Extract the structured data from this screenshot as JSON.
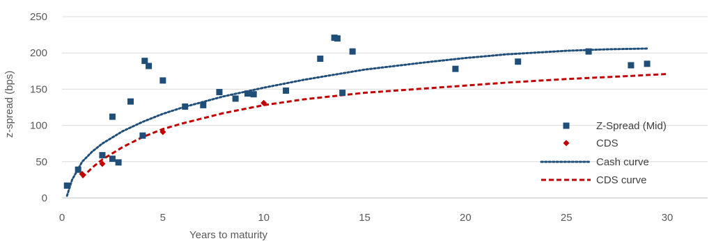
{
  "chart_data": {
    "type": "scatter",
    "title": "",
    "xlabel": "Years to maturity",
    "ylabel": "z-spread (bps)",
    "xlim": [
      0,
      32
    ],
    "ylim": [
      0,
      250
    ],
    "xticks": [
      "0",
      "5",
      "10",
      "15",
      "20",
      "25",
      "30"
    ],
    "yticks": [
      "0",
      "50",
      "100",
      "150",
      "200",
      "250"
    ],
    "grid": "horizontal",
    "legend_position": "right",
    "series": [
      {
        "name": "Z-Spread (Mid)",
        "kind": "scatter",
        "marker": "square",
        "color": "#1F4E79",
        "x": [
          0.25,
          0.8,
          2.0,
          2.5,
          2.5,
          2.8,
          3.4,
          4.0,
          4.1,
          4.3,
          5.0,
          6.1,
          7.0,
          7.8,
          8.6,
          9.2,
          9.5,
          11.1,
          12.8,
          13.5,
          13.65,
          13.9,
          14.4,
          19.5,
          22.6,
          26.1,
          28.2,
          29.0
        ],
        "y": [
          17,
          39,
          59,
          112,
          54,
          49,
          133,
          86,
          189,
          182,
          162,
          126,
          128,
          146,
          137,
          144,
          143,
          148,
          192,
          221,
          220,
          145,
          202,
          178,
          188,
          202,
          183,
          185
        ]
      },
      {
        "name": "CDS",
        "kind": "scatter",
        "marker": "diamond",
        "color": "#C00000",
        "x": [
          1.0,
          2.0,
          5.0,
          10.0
        ],
        "y": [
          33,
          47,
          91,
          131
        ]
      },
      {
        "name": "Cash curve",
        "kind": "line",
        "style": "dotted",
        "color": "#1F4E79",
        "x": [
          0.25,
          0.5,
          1,
          1.5,
          2,
          3,
          4,
          5,
          6,
          8,
          10,
          12,
          15,
          18,
          20,
          22,
          25,
          27,
          29
        ],
        "y": [
          3,
          25,
          50,
          64,
          75,
          92,
          105,
          116,
          125,
          140,
          152,
          163,
          177,
          187,
          193,
          198,
          203,
          205,
          206
        ]
      },
      {
        "name": "CDS curve",
        "kind": "line",
        "style": "dashed",
        "color": "#C00000",
        "x": [
          1,
          1.5,
          2,
          3,
          4,
          5,
          6,
          8,
          10,
          12,
          15,
          18,
          20,
          22,
          25,
          28,
          30
        ],
        "y": [
          28,
          42,
          53,
          70,
          84,
          95,
          103,
          117,
          128,
          136,
          145,
          151,
          155,
          159,
          164,
          168,
          171
        ]
      }
    ]
  }
}
